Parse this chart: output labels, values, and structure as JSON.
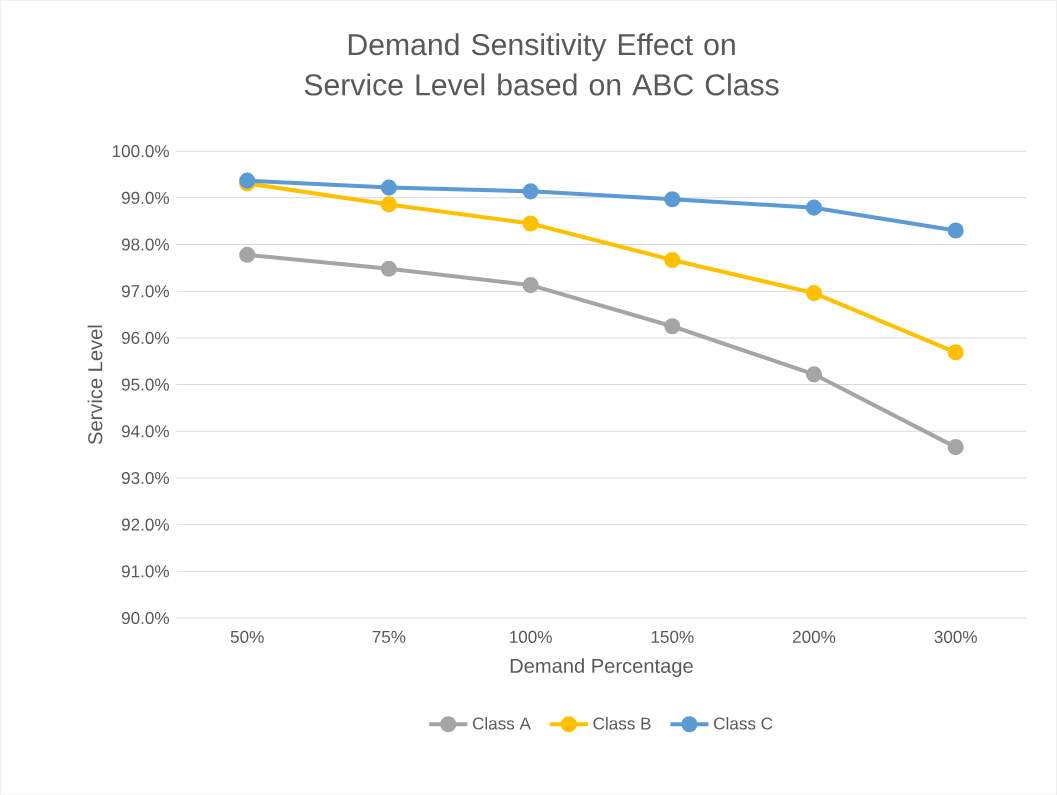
{
  "chart_data": {
    "type": "line",
    "title": "Demand Sensitivity Effect on Service Level based on ABC Class",
    "xlabel": "Demand Percentage",
    "ylabel": "Service Level",
    "categories": [
      "50%",
      "75%",
      "100%",
      "150%",
      "200%",
      "300%"
    ],
    "series": [
      {
        "name": "Class A",
        "color": "#a5a5a5",
        "values": [
          97.78,
          97.48,
          97.13,
          96.25,
          95.22,
          93.66
        ]
      },
      {
        "name": "Class B",
        "color": "#ffc000",
        "values": [
          99.31,
          98.86,
          98.45,
          97.67,
          96.96,
          95.69
        ]
      },
      {
        "name": "Class C",
        "color": "#5b9bd5",
        "values": [
          99.37,
          99.22,
          99.14,
          98.97,
          98.79,
          98.3
        ]
      }
    ],
    "ylim": [
      90,
      100
    ],
    "yticks": [
      {
        "value": 90,
        "label": "90.0%"
      },
      {
        "value": 91,
        "label": "91.0%"
      },
      {
        "value": 92,
        "label": "92.0%"
      },
      {
        "value": 93,
        "label": "93.0%"
      },
      {
        "value": 94,
        "label": "94.0%"
      },
      {
        "value": 95,
        "label": "95.0%"
      },
      {
        "value": 96,
        "label": "96.0%"
      },
      {
        "value": 97,
        "label": "97.0%"
      },
      {
        "value": 98,
        "label": "98.0%"
      },
      {
        "value": 99,
        "label": "99.0%"
      },
      {
        "value": 100,
        "label": "100.0%"
      }
    ],
    "grid": "y",
    "legend": "bottom",
    "marker": "circle",
    "line_style": "solid"
  }
}
